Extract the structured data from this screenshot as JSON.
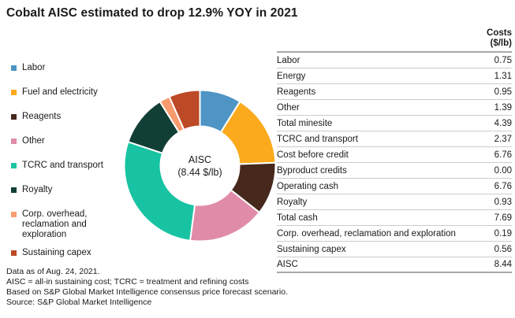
{
  "title": "Cobalt AISC estimated to drop 12.9% YOY in 2021",
  "chart_data": {
    "type": "pie",
    "style": "donut",
    "legend_position": "left",
    "start_angle_deg": 0,
    "direction": "clockwise",
    "center_label": {
      "line1": "AISC",
      "line2": "(8.44 $/lb)"
    },
    "segments": [
      {
        "label": "Labor",
        "value": 0.75,
        "color": "#4E95C5"
      },
      {
        "label": "Fuel and electricity",
        "value": 1.31,
        "color": "#FBAA1D"
      },
      {
        "label": "Reagents",
        "value": 0.95,
        "color": "#46281C"
      },
      {
        "label": "Other",
        "value": 1.39,
        "color": "#E08CA9"
      },
      {
        "label": "TCRC and transport",
        "value": 2.37,
        "color": "#17C3A2"
      },
      {
        "label": "Royalty",
        "value": 0.93,
        "color": "#123F35"
      },
      {
        "label": "Corp. overhead, reclamation and exploration",
        "value": 0.19,
        "color": "#F89C6E"
      },
      {
        "label": "Sustaining capex",
        "value": 0.56,
        "color": "#BC4A26"
      }
    ]
  },
  "table": {
    "header_line1": "Costs",
    "header_line2": "($/lb)",
    "rows": [
      {
        "label": "Labor",
        "value": "0.75"
      },
      {
        "label": "Energy",
        "value": "1.31"
      },
      {
        "label": "Reagents",
        "value": "0.95"
      },
      {
        "label": "Other",
        "value": "1.39"
      },
      {
        "label": "Total minesite",
        "value": "4.39"
      },
      {
        "label": "TCRC and transport",
        "value": "2.37"
      },
      {
        "label": "Cost before credit",
        "value": "6.76"
      },
      {
        "label": "Byproduct credits",
        "value": "0.00"
      },
      {
        "label": "Operating cash",
        "value": "6.76"
      },
      {
        "label": "Royalty",
        "value": "0.93"
      },
      {
        "label": "Total cash",
        "value": "7.69"
      },
      {
        "label": "Corp. overhead, reclamation and exploration",
        "value": "0.19"
      },
      {
        "label": "Sustaining capex",
        "value": "0.56"
      },
      {
        "label": "AISC",
        "value": "8.44"
      }
    ]
  },
  "footnotes": [
    "Data as of Aug. 24, 2021.",
    "AISC = all-in sustaining cost; TCRC = treatment and refining costs",
    "Based on S&P Global Market Intelligence consensus price forecast scenario.",
    "Source: S&P Global Market Intelligence"
  ]
}
